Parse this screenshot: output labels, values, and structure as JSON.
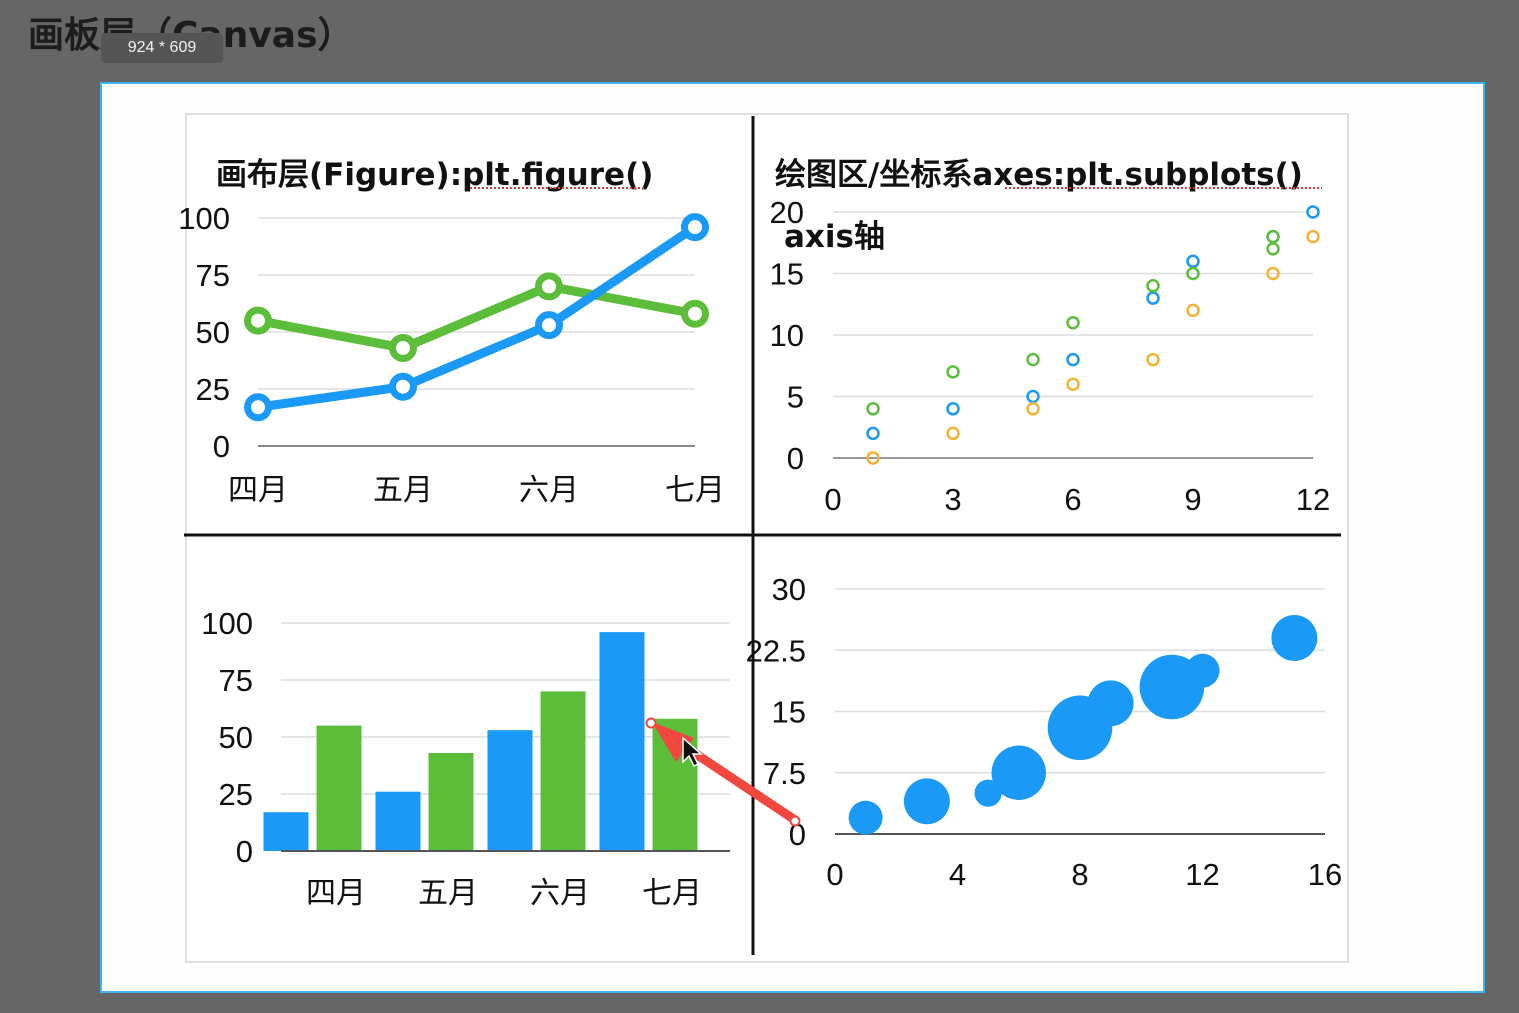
{
  "header": {
    "title": "画板层（Canvas）",
    "size_badge": "924 * 609"
  },
  "colors": {
    "blue": "#1a9af6",
    "green": "#5cbd3a",
    "orange": "#f6b232",
    "red_arrow": "#f2473f",
    "canvas_border": "#3fb5f0"
  },
  "annotations": {
    "figure_label": "画布层(Figure):plt.figure()",
    "axes_label": "绘图区/坐标系axes:plt.subplots()",
    "axis_label": "axis轴"
  },
  "chart_data": [
    {
      "type": "line",
      "categories": [
        "四月",
        "五月",
        "六月",
        "七月"
      ],
      "series": [
        {
          "values": [
            17,
            26,
            53,
            96
          ],
          "color": "#1a9af6"
        },
        {
          "values": [
            55,
            43,
            70,
            58
          ],
          "color": "#5cbd3a"
        }
      ],
      "yticks": [
        "0",
        "25",
        "50",
        "75",
        "100"
      ],
      "ylim": [
        0,
        100
      ],
      "grid": true
    },
    {
      "type": "scatter",
      "series": [
        {
          "color": "#1a9af6",
          "points": [
            [
              1,
              2
            ],
            [
              3,
              4
            ],
            [
              5,
              5
            ],
            [
              6,
              8
            ],
            [
              8,
              13
            ],
            [
              9,
              16
            ],
            [
              11,
              18
            ],
            [
              12,
              20
            ]
          ]
        },
        {
          "color": "#5cbd3a",
          "points": [
            [
              1,
              4
            ],
            [
              3,
              7
            ],
            [
              5,
              8
            ],
            [
              6,
              11
            ],
            [
              8,
              14
            ],
            [
              9,
              15
            ],
            [
              11,
              17
            ],
            [
              11,
              18
            ]
          ]
        },
        {
          "color": "#f6b232",
          "points": [
            [
              1,
              0
            ],
            [
              3,
              2
            ],
            [
              5,
              4
            ],
            [
              6,
              6
            ],
            [
              8,
              8
            ],
            [
              9,
              12
            ],
            [
              11,
              15
            ],
            [
              12,
              18
            ]
          ]
        }
      ],
      "xticks": [
        "0",
        "3",
        "6",
        "9",
        "12"
      ],
      "yticks": [
        "0",
        "5",
        "10",
        "15",
        "20"
      ],
      "xlim": [
        0,
        12
      ],
      "ylim": [
        0,
        20
      ],
      "grid": true
    },
    {
      "type": "bar",
      "categories": [
        "四月",
        "五月",
        "六月",
        "七月"
      ],
      "series": [
        {
          "values": [
            17,
            26,
            53,
            96
          ],
          "color": "#1a9af6"
        },
        {
          "values": [
            55,
            43,
            70,
            58
          ],
          "color": "#5cbd3a"
        }
      ],
      "yticks": [
        "0",
        "25",
        "50",
        "75",
        "100"
      ],
      "ylim": [
        0,
        100
      ],
      "grid": true
    },
    {
      "type": "scatter",
      "series": [
        {
          "color": "#1a9af6",
          "points": [
            {
              "x": 1,
              "y": 2,
              "size": 1.0
            },
            {
              "x": 3,
              "y": 4,
              "size": 1.35
            },
            {
              "x": 5,
              "y": 5,
              "size": 0.8
            },
            {
              "x": 6,
              "y": 7.5,
              "size": 1.6
            },
            {
              "x": 8,
              "y": 13,
              "size": 1.9
            },
            {
              "x": 9,
              "y": 16,
              "size": 1.35
            },
            {
              "x": 11,
              "y": 18,
              "size": 1.9
            },
            {
              "x": 12,
              "y": 20,
              "size": 1.0
            },
            {
              "x": 15,
              "y": 24,
              "size": 1.35
            }
          ]
        }
      ],
      "xticks": [
        "0",
        "4",
        "8",
        "12",
        "16"
      ],
      "yticks": [
        "0",
        "7.5",
        "15",
        "22.5",
        "30"
      ],
      "xlim": [
        0,
        16
      ],
      "ylim": [
        0,
        30
      ],
      "grid": true
    }
  ]
}
